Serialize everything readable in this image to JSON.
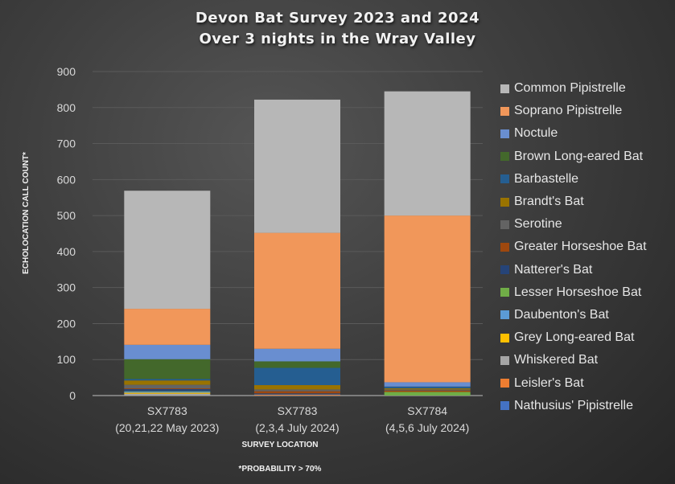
{
  "chart_data": {
    "type": "bar",
    "stacked": true,
    "title": "Devon Bat Survey 2023 and 2024",
    "subtitle": "Over 3 nights  in the Wray Valley",
    "xlabel": "SURVEY LOCATION",
    "ylabel": "ECHOLOCATION CALL COUNT*",
    "footnote": "*PROBABILITY > 70%",
    "ylim": [
      0,
      900
    ],
    "yticks": [
      0,
      100,
      200,
      300,
      400,
      500,
      600,
      700,
      800,
      900
    ],
    "grid": true,
    "legend_position": "right",
    "categories": [
      {
        "line1": "SX7783",
        "line2": "(20,21,22 May 2023)"
      },
      {
        "line1": "SX7783",
        "line2": "(2,3,4 July 2024)"
      },
      {
        "line1": "SX7784",
        "line2": "(4,5,6 July 2024)"
      }
    ],
    "series": [
      {
        "name": "Nathusius' Pipistrelle",
        "color": "#4472c4",
        "values": [
          0,
          0,
          0
        ]
      },
      {
        "name": "Leisler's Bat",
        "color": "#ed7d31",
        "values": [
          0,
          2,
          0
        ]
      },
      {
        "name": "Whiskered Bat",
        "color": "#a5a5a5",
        "values": [
          5,
          1,
          0
        ]
      },
      {
        "name": "Grey Long-eared Bat",
        "color": "#ffc000",
        "values": [
          3,
          0,
          0
        ]
      },
      {
        "name": "Daubenton's Bat",
        "color": "#5b9bd5",
        "values": [
          3,
          0,
          0
        ]
      },
      {
        "name": "Lesser Horseshoe Bat",
        "color": "#70ad47",
        "values": [
          1,
          0,
          10
        ]
      },
      {
        "name": "Natterer's Bat",
        "color": "#264478",
        "values": [
          6,
          3,
          0
        ]
      },
      {
        "name": "Greater Horseshoe Bat",
        "color": "#9e480e",
        "values": [
          2,
          6,
          4
        ]
      },
      {
        "name": "Serotine",
        "color": "#636363",
        "values": [
          10,
          5,
          3
        ]
      },
      {
        "name": "Brandt's Bat",
        "color": "#997300",
        "values": [
          12,
          12,
          3
        ]
      },
      {
        "name": "Barbastelle",
        "color": "#255e91",
        "values": [
          4,
          48,
          5
        ]
      },
      {
        "name": "Brown Long-eared Bat",
        "color": "#43682b",
        "values": [
          55,
          18,
          0
        ]
      },
      {
        "name": "Noctule",
        "color": "#698ed0",
        "values": [
          40,
          35,
          12
        ]
      },
      {
        "name": "Soprano Pipistrelle",
        "color": "#f1975a",
        "values": [
          100,
          322,
          463
        ]
      },
      {
        "name": "Common Pipistrelle",
        "color": "#b7b7b7",
        "values": [
          328,
          370,
          345
        ]
      }
    ],
    "totals": [
      569,
      822,
      845
    ],
    "legend_order": [
      "Common Pipistrelle",
      "Soprano Pipistrelle",
      "Noctule",
      "Brown Long-eared Bat",
      "Barbastelle",
      "Brandt's Bat",
      "Serotine",
      "Greater Horseshoe Bat",
      "Natterer's Bat",
      "Lesser Horseshoe Bat",
      "Daubenton's Bat",
      "Grey Long-eared Bat",
      "Whiskered Bat",
      "Leisler's Bat",
      "Nathusius' Pipistrelle"
    ]
  }
}
